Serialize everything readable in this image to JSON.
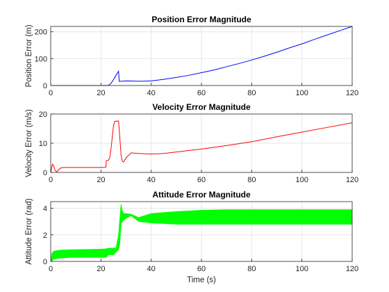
{
  "chart_data": [
    {
      "type": "line",
      "title": "Position Error Magnitude",
      "xlabel": "",
      "ylabel": "Position Error (m)",
      "xlim": [
        0,
        120
      ],
      "ylim": [
        0,
        220
      ],
      "xticks": [
        0,
        20,
        40,
        60,
        80,
        100,
        120
      ],
      "yticks": [
        0,
        100,
        200
      ],
      "grid": true,
      "color": "#0000ff",
      "series": [
        {
          "x": [
            0,
            10,
            20,
            23,
            24,
            25,
            26,
            27,
            27.3,
            28,
            30,
            33,
            36,
            40,
            45,
            50,
            55,
            60,
            65,
            70,
            75,
            80,
            85,
            90,
            95,
            100,
            105,
            110,
            115,
            120
          ],
          "y": [
            0,
            0,
            0,
            0.5,
            8,
            22,
            38,
            53,
            15,
            16,
            17,
            16.5,
            16,
            17,
            23,
            30,
            38,
            48,
            58,
            70,
            82,
            95,
            109,
            124,
            140,
            155,
            172,
            188,
            204,
            220
          ]
        }
      ]
    },
    {
      "type": "line",
      "title": "Velocity Error Magnitude",
      "xlabel": "",
      "ylabel": "Velocity Error (m/s)",
      "xlim": [
        0,
        120
      ],
      "ylim": [
        0,
        20
      ],
      "xticks": [
        0,
        20,
        40,
        60,
        80,
        100,
        120
      ],
      "yticks": [
        0,
        10,
        20
      ],
      "grid": true,
      "color": "#ff0000",
      "series": [
        {
          "x": [
            0,
            0.7,
            1.2,
            1.8,
            2.5,
            3.2,
            4.2,
            6,
            10,
            15,
            20,
            22,
            22.1,
            23,
            23.5,
            24,
            24.5,
            25,
            25.5,
            27,
            27.5,
            28,
            28.5,
            29,
            30,
            32,
            35,
            40,
            45,
            50,
            60,
            70,
            80,
            90,
            100,
            110,
            120
          ],
          "y": [
            0,
            2.8,
            2.2,
            0.6,
            0.2,
            1.0,
            1.6,
            1.7,
            1.7,
            1.7,
            1.7,
            1.8,
            4,
            4.2,
            5,
            8,
            12,
            16,
            17.5,
            17.6,
            12,
            6,
            3.8,
            3.6,
            5,
            6.7,
            6.5,
            6.3,
            6.5,
            7,
            8,
            9.2,
            10.5,
            12.2,
            13.8,
            15.4,
            17
          ]
        }
      ]
    },
    {
      "type": "line",
      "title": "Attitude Error Magnitude",
      "xlabel": "Time (s)",
      "ylabel": "Attitude Error (rad)",
      "xlim": [
        0,
        120
      ],
      "ylim": [
        0,
        4.5
      ],
      "xticks": [
        0,
        20,
        40,
        60,
        80,
        100,
        120
      ],
      "yticks": [
        0,
        2,
        4
      ],
      "grid": true,
      "color": "#00ff00",
      "series": [
        {
          "x": [
            0,
            0.5,
            1,
            2,
            4,
            8,
            15,
            20,
            22,
            23,
            25,
            26,
            27,
            27.5,
            28,
            28.5,
            29,
            30,
            32,
            35,
            40,
            50,
            60,
            70,
            80,
            90,
            100,
            110,
            120
          ],
          "upper": [
            0,
            0.6,
            0.75,
            0.8,
            0.85,
            0.88,
            0.9,
            0.92,
            0.95,
            1.0,
            1.0,
            1.0,
            2.0,
            3.2,
            4.3,
            3.8,
            3.6,
            3.6,
            3.55,
            3.3,
            3.6,
            3.75,
            3.85,
            3.9,
            3.9,
            3.9,
            3.9,
            3.9,
            3.9
          ],
          "lower": [
            0,
            0.05,
            0.15,
            0.2,
            0.25,
            0.3,
            0.3,
            0.3,
            0.3,
            0.5,
            0.5,
            0.7,
            0.9,
            1.3,
            2.8,
            3.0,
            3.1,
            3.25,
            3.45,
            3.0,
            2.9,
            2.8,
            2.8,
            2.8,
            2.8,
            2.8,
            2.8,
            2.8,
            2.8
          ]
        }
      ]
    }
  ]
}
